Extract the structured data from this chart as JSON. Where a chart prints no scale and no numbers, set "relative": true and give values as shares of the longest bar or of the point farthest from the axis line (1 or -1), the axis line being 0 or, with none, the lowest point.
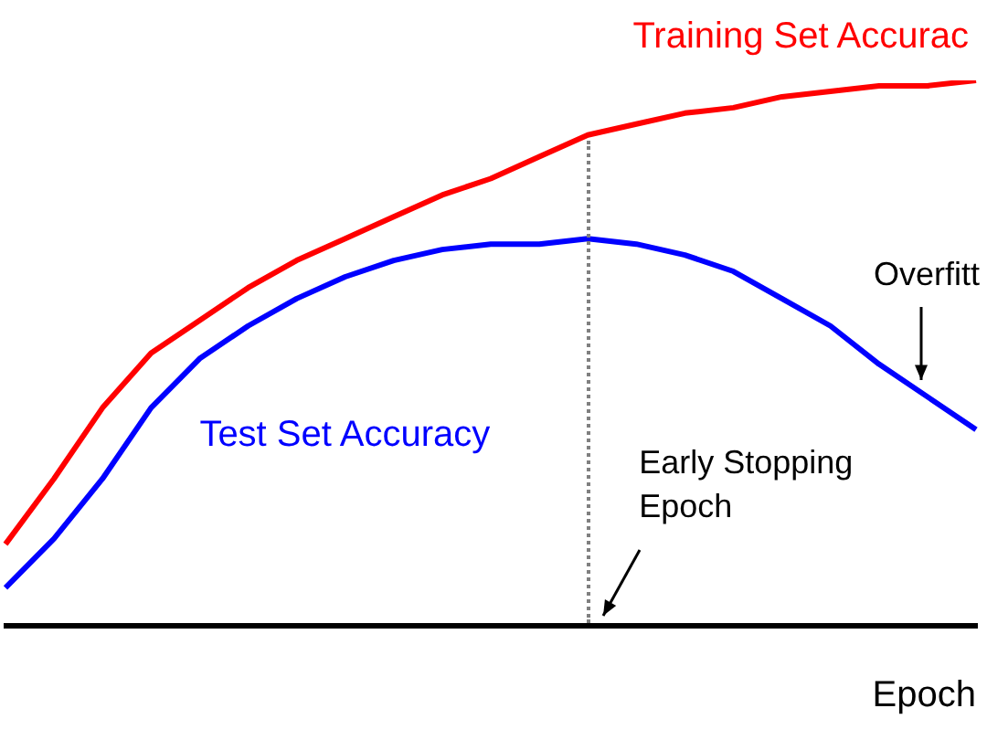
{
  "chart_data": {
    "type": "line",
    "relative": true,
    "xlabel": "Epoch",
    "categories": [
      null,
      null,
      null,
      null,
      null,
      null,
      null,
      null,
      null,
      null,
      null,
      null,
      null,
      null,
      null,
      null,
      null,
      null,
      null,
      null,
      null
    ],
    "series": [
      {
        "name": "Training Set Accurac",
        "color": "#ff0000",
        "values": [
          0.15,
          0.27,
          0.4,
          0.5,
          0.56,
          0.62,
          0.67,
          0.71,
          0.75,
          0.79,
          0.82,
          0.86,
          0.9,
          0.92,
          0.94,
          0.95,
          0.97,
          0.98,
          0.99,
          0.99,
          1.0
        ]
      },
      {
        "name": "Test Set Accuracy",
        "color": "#0000ff",
        "values": [
          0.07,
          0.16,
          0.27,
          0.4,
          0.49,
          0.55,
          0.6,
          0.64,
          0.67,
          0.69,
          0.7,
          0.7,
          0.71,
          0.7,
          0.68,
          0.65,
          0.6,
          0.55,
          0.48,
          0.42,
          0.36
        ]
      }
    ],
    "annotations": [
      {
        "text": "Early Stopping\nEpoch"
      },
      {
        "text": "Overfitt"
      }
    ],
    "grid": false,
    "legend": false,
    "marker": "none",
    "line_style": "solid"
  }
}
